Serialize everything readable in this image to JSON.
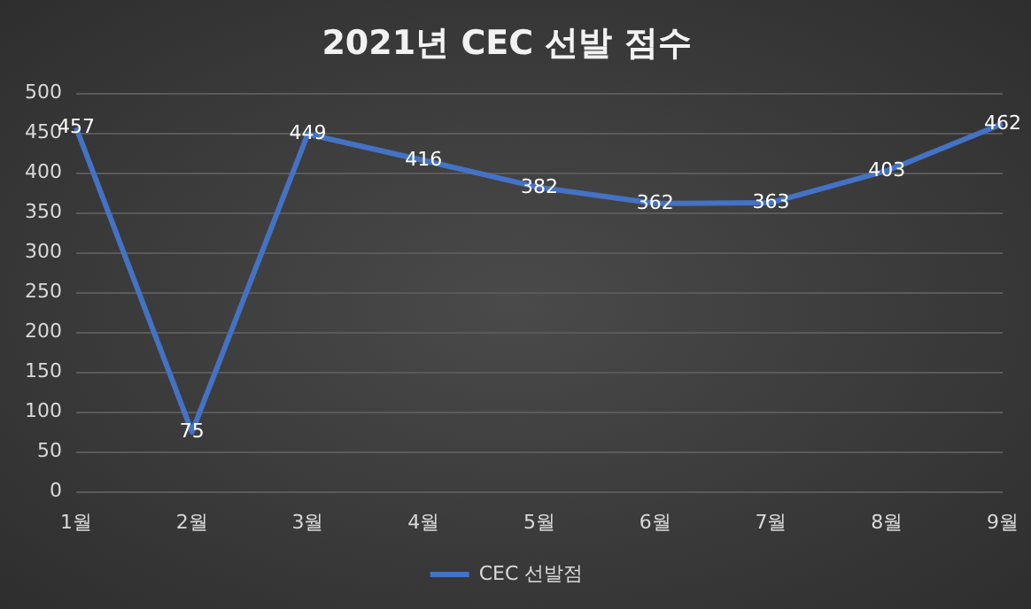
{
  "chart_data": {
    "type": "line",
    "title": "2021년 CEC 선발 점수",
    "categories": [
      "1월",
      "2월",
      "3월",
      "4월",
      "5월",
      "6월",
      "7월",
      "8월",
      "9월"
    ],
    "series": [
      {
        "name": "CEC 선발점",
        "color": "#4472c4",
        "values": [
          457,
          75,
          449,
          416,
          382,
          362,
          363,
          403,
          462
        ]
      }
    ],
    "ylim": [
      0,
      500
    ],
    "yticks": [
      0,
      50,
      100,
      150,
      200,
      250,
      300,
      350,
      400,
      450,
      500
    ],
    "grid": "y",
    "legend": "bottom",
    "data_labels": true,
    "marker": "none",
    "line_style": "solid"
  }
}
